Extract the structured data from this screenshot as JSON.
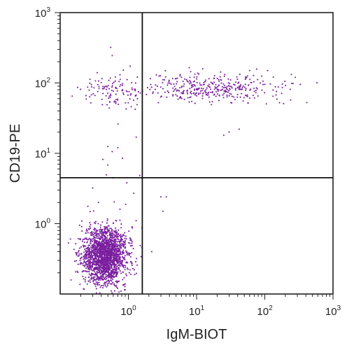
{
  "chart_data": {
    "type": "scatter",
    "title": "",
    "xlabel": "IgM-BIOT",
    "ylabel": "CD19-PE",
    "x_scale": "log",
    "y_scale": "log",
    "xlim": [
      0.1,
      1000
    ],
    "ylim": [
      0.1,
      1000
    ],
    "x_tick_labels": [
      {
        "base": "10",
        "exp": "0",
        "value": 1
      },
      {
        "base": "10",
        "exp": "1",
        "value": 10
      },
      {
        "base": "10",
        "exp": "2",
        "value": 100
      },
      {
        "base": "10",
        "exp": "3",
        "value": 1000
      }
    ],
    "y_tick_labels": [
      {
        "base": "10",
        "exp": "0",
        "value": 1
      },
      {
        "base": "10",
        "exp": "1",
        "value": 10
      },
      {
        "base": "10",
        "exp": "2",
        "value": 100
      },
      {
        "base": "10",
        "exp": "3",
        "value": 1000
      }
    ],
    "quadrant_gates": {
      "x": 1.6,
      "y": 4.5
    },
    "grid": false,
    "legend": "none",
    "point_color": "#7a1f9e",
    "populations": [
      {
        "center": [
          0.45,
          0.35
        ],
        "spread_log": [
          0.16,
          0.2
        ],
        "approx_count": 2000
      },
      {
        "center": [
          0.6,
          80
        ],
        "spread_log": [
          0.22,
          0.12
        ],
        "approx_count": 110
      },
      {
        "center": [
          18,
          85
        ],
        "spread_log": [
          0.5,
          0.1
        ],
        "approx_count": 360
      },
      {
        "center": [
          0.7,
          6
        ],
        "spread_log": [
          0.35,
          0.5
        ],
        "approx_count": 10
      }
    ],
    "points": [
      [
        0.55,
        320
      ],
      [
        0.58,
        245
      ],
      [
        0.15,
        65
      ],
      [
        0.5,
        12.5
      ],
      [
        0.7,
        12
      ],
      [
        0.5,
        6.8
      ],
      [
        0.82,
        8.5
      ],
      [
        0.3,
        3.2
      ],
      [
        0.95,
        3.8
      ],
      [
        1.2,
        2.7
      ],
      [
        3.0,
        2.4
      ],
      [
        3.6,
        2.4
      ],
      [
        3.2,
        1.5
      ],
      [
        1.3,
        1.1
      ],
      [
        2.2,
        0.4
      ],
      [
        30,
        20
      ],
      [
        42,
        22
      ],
      [
        25,
        18
      ],
      [
        5,
        115
      ],
      [
        6,
        120
      ],
      [
        60,
        150
      ],
      [
        110,
        150
      ],
      [
        280,
        120
      ],
      [
        90,
        125
      ],
      [
        0.35,
        140
      ]
    ]
  }
}
